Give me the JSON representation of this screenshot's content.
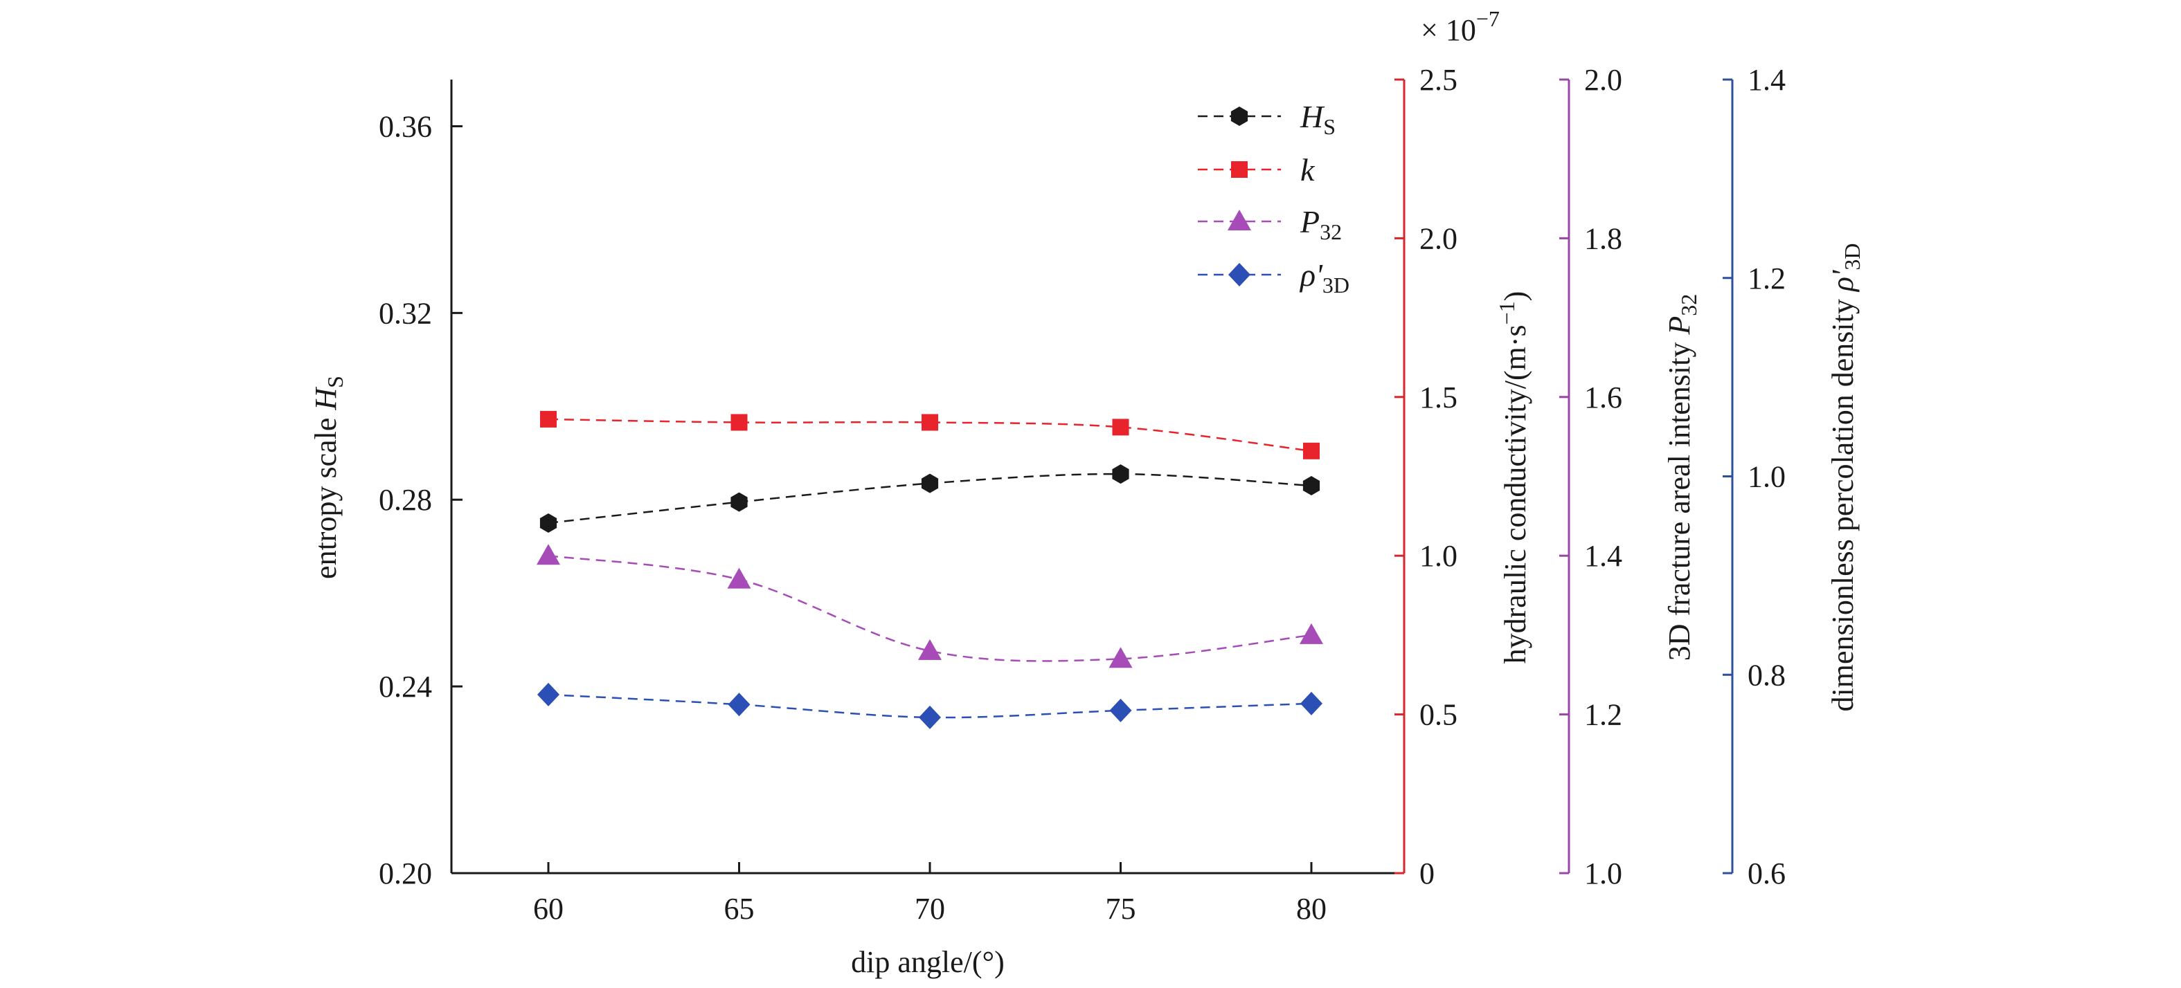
{
  "chart_data": {
    "type": "line",
    "x": [
      60,
      65,
      70,
      75,
      80
    ],
    "xlim": [
      57.5,
      82.5
    ],
    "xticks": [
      "60",
      "65",
      "70",
      "75",
      "80"
    ],
    "xlabel": "dip angle/(°)",
    "axes": {
      "y1": {
        "label_main": "entropy scale ",
        "label_italic": "H",
        "label_sub": "S",
        "ylim": [
          0.2,
          0.37
        ],
        "ticks": [
          "0.20",
          "0.24",
          "0.28",
          "0.32",
          "0.36"
        ],
        "color": "#1a1a1a"
      },
      "y2": {
        "label": "hydraulic conductivity/(m·s",
        "label_sup": "−1",
        "label_end": ")",
        "multiplier": "× 10",
        "multiplier_exp": "−7",
        "ylim": [
          0,
          2.5
        ],
        "ticks": [
          "0",
          "0.5",
          "1.0",
          "1.5",
          "2.0",
          "2.5"
        ],
        "color": "#d7262e"
      },
      "y3": {
        "label_main": "3D fracture areal intensity ",
        "label_italic": "P",
        "label_sub": "32",
        "ylim": [
          1.0,
          2.0
        ],
        "ticks": [
          "1.0",
          "1.2",
          "1.4",
          "1.6",
          "1.8",
          "2.0"
        ],
        "color": "#9b45a8"
      },
      "y4": {
        "label_main": "dimensionless percolation density ",
        "label_italic": "ρ'",
        "label_sub": "3D",
        "ylim": [
          0.6,
          1.4
        ],
        "ticks": [
          "0.6",
          "0.8",
          "1.0",
          "1.2",
          "1.4"
        ],
        "color": "#2c4f9e"
      }
    },
    "series": [
      {
        "name": "H",
        "name_sub": "S",
        "axis": "y1",
        "values": [
          0.275,
          0.2795,
          0.2835,
          0.2855,
          0.283
        ],
        "color": "#1a1a1a",
        "marker": "hexagon"
      },
      {
        "name": "k",
        "name_sub": "",
        "axis": "y2",
        "values": [
          1.43,
          1.42,
          1.42,
          1.405,
          1.33
        ],
        "color": "#e8232b",
        "marker": "square"
      },
      {
        "name": "P",
        "name_sub": "32",
        "axis": "y3",
        "values": [
          1.4,
          1.37,
          1.28,
          1.27,
          1.3
        ],
        "color": "#a64bb8",
        "marker": "triangle"
      },
      {
        "name": "ρ'",
        "name_sub": "3D",
        "axis": "y4",
        "values": [
          0.78,
          0.77,
          0.757,
          0.764,
          0.771
        ],
        "color": "#2b4fb5",
        "marker": "diamond"
      }
    ],
    "legend_position": "top-right",
    "grid": false
  }
}
